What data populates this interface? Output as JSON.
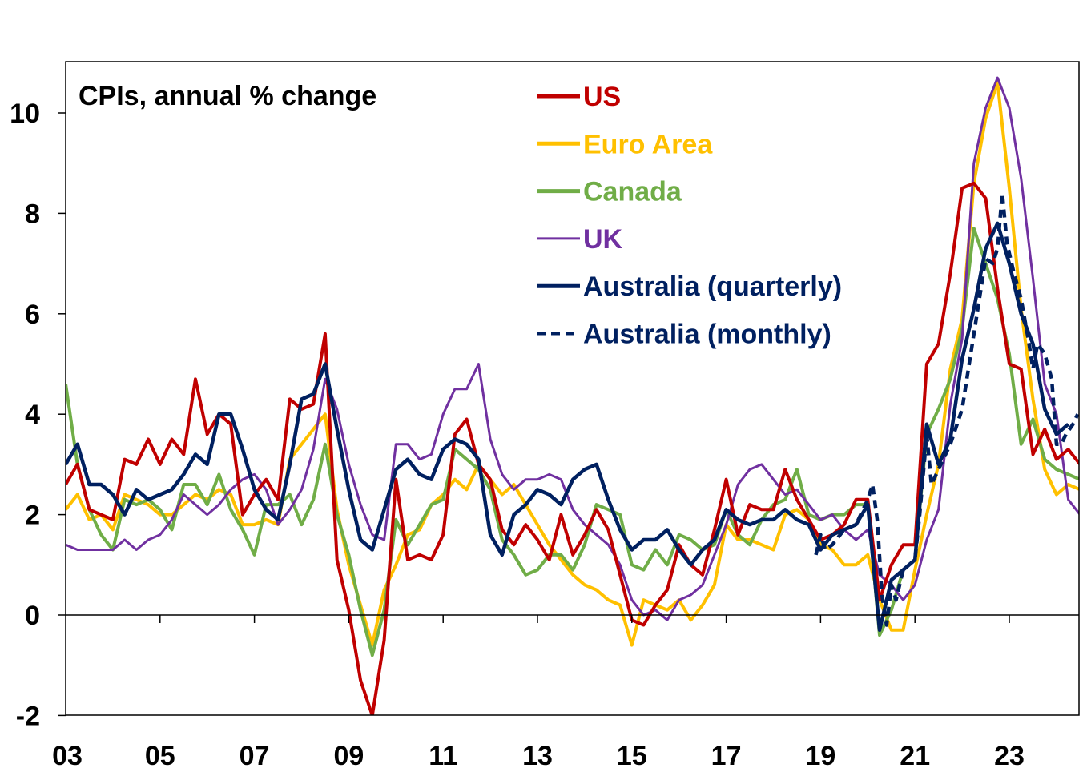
{
  "chart_data": {
    "type": "line",
    "title": "CPIs, annual % change",
    "xlabel": "",
    "ylabel": "",
    "xlim": [
      2003.0,
      2024.75
    ],
    "ylim": [
      -2,
      11
    ],
    "y_ticks": [
      -2,
      0,
      2,
      4,
      6,
      8,
      10
    ],
    "y_tick_labels": [
      "-2",
      "0",
      "2",
      "4",
      "6",
      "8",
      "10"
    ],
    "x_ticks": [
      2003,
      2005,
      2007,
      2009,
      2011,
      2013,
      2015,
      2017,
      2019,
      2021,
      2023
    ],
    "x_tick_labels": [
      "03",
      "05",
      "07",
      "09",
      "11",
      "13",
      "15",
      "17",
      "19",
      "21",
      "23"
    ],
    "grid": false,
    "legend_position": "top-center",
    "series": [
      {
        "name": "US",
        "color": "#C00000",
        "dash": false,
        "x": [
          2003.0,
          2003.25,
          2003.5,
          2003.75,
          2004.0,
          2004.25,
          2004.5,
          2004.75,
          2005.0,
          2005.25,
          2005.5,
          2005.75,
          2006.0,
          2006.25,
          2006.5,
          2006.75,
          2007.0,
          2007.25,
          2007.5,
          2007.75,
          2008.0,
          2008.25,
          2008.5,
          2008.75,
          2009.0,
          2009.25,
          2009.5,
          2009.75,
          2010.0,
          2010.25,
          2010.5,
          2010.75,
          2011.0,
          2011.25,
          2011.5,
          2011.75,
          2012.0,
          2012.25,
          2012.5,
          2012.75,
          2013.0,
          2013.25,
          2013.5,
          2013.75,
          2014.0,
          2014.25,
          2014.5,
          2014.75,
          2015.0,
          2015.25,
          2015.5,
          2015.75,
          2016.0,
          2016.25,
          2016.5,
          2016.75,
          2017.0,
          2017.25,
          2017.5,
          2017.75,
          2018.0,
          2018.25,
          2018.5,
          2018.75,
          2019.0,
          2019.25,
          2019.5,
          2019.75,
          2020.0,
          2020.25,
          2020.5,
          2020.75,
          2021.0,
          2021.25,
          2021.5,
          2021.75,
          2022.0,
          2022.25,
          2022.5,
          2022.75,
          2023.0,
          2023.25,
          2023.5,
          2023.75,
          2024.0,
          2024.25,
          2024.5
        ],
        "y": [
          2.6,
          3.0,
          2.1,
          2.0,
          1.9,
          3.1,
          3.0,
          3.5,
          3.0,
          3.5,
          3.2,
          4.7,
          3.6,
          4.0,
          3.8,
          2.0,
          2.4,
          2.7,
          2.3,
          4.3,
          4.1,
          4.2,
          5.6,
          1.1,
          0.1,
          -1.3,
          -2.0,
          -0.5,
          2.7,
          1.1,
          1.2,
          1.1,
          1.6,
          3.6,
          3.9,
          3.0,
          2.7,
          1.7,
          1.4,
          1.8,
          1.5,
          1.1,
          2.0,
          1.2,
          1.6,
          2.1,
          1.7,
          0.8,
          -0.1,
          -0.2,
          0.2,
          0.5,
          1.4,
          1.0,
          0.8,
          1.7,
          2.7,
          1.6,
          2.2,
          2.1,
          2.1,
          2.9,
          2.3,
          1.9,
          1.5,
          1.6,
          1.8,
          2.3,
          2.3,
          0.3,
          1.0,
          1.4,
          1.4,
          5.0,
          5.4,
          6.8,
          8.5,
          8.6,
          8.3,
          6.5,
          5.0,
          4.9,
          3.2,
          3.7,
          3.1,
          3.3,
          3.0
        ]
      },
      {
        "name": "Euro Area",
        "color": "#FFC000",
        "dash": false,
        "x": [
          2003.0,
          2003.25,
          2003.5,
          2003.75,
          2004.0,
          2004.25,
          2004.5,
          2004.75,
          2005.0,
          2005.25,
          2005.5,
          2005.75,
          2006.0,
          2006.25,
          2006.5,
          2006.75,
          2007.0,
          2007.25,
          2007.5,
          2007.75,
          2008.0,
          2008.25,
          2008.5,
          2008.75,
          2009.0,
          2009.25,
          2009.5,
          2009.75,
          2010.0,
          2010.25,
          2010.5,
          2010.75,
          2011.0,
          2011.25,
          2011.5,
          2011.75,
          2012.0,
          2012.25,
          2012.5,
          2012.75,
          2013.0,
          2013.25,
          2013.5,
          2013.75,
          2014.0,
          2014.25,
          2014.5,
          2014.75,
          2015.0,
          2015.25,
          2015.5,
          2015.75,
          2016.0,
          2016.25,
          2016.5,
          2016.75,
          2017.0,
          2017.25,
          2017.5,
          2017.75,
          2018.0,
          2018.25,
          2018.5,
          2018.75,
          2019.0,
          2019.25,
          2019.5,
          2019.75,
          2020.0,
          2020.25,
          2020.5,
          2020.75,
          2021.0,
          2021.25,
          2021.5,
          2021.75,
          2022.0,
          2022.25,
          2022.5,
          2022.75,
          2023.0,
          2023.25,
          2023.5,
          2023.75,
          2024.0,
          2024.25,
          2024.5
        ],
        "y": [
          2.1,
          2.4,
          1.9,
          2.0,
          1.7,
          2.4,
          2.3,
          2.2,
          2.0,
          2.0,
          2.2,
          2.4,
          2.3,
          2.5,
          2.4,
          1.8,
          1.8,
          1.9,
          1.8,
          3.1,
          3.4,
          3.7,
          4.0,
          2.1,
          1.0,
          0.2,
          -0.6,
          0.5,
          1.0,
          1.6,
          1.7,
          2.2,
          2.4,
          2.7,
          2.5,
          3.0,
          2.7,
          2.4,
          2.6,
          2.2,
          1.8,
          1.4,
          1.1,
          0.8,
          0.6,
          0.5,
          0.3,
          0.2,
          -0.6,
          0.3,
          0.2,
          0.1,
          0.3,
          -0.1,
          0.2,
          0.6,
          1.8,
          1.5,
          1.5,
          1.4,
          1.3,
          2.0,
          2.1,
          1.9,
          1.4,
          1.3,
          1.0,
          1.0,
          1.2,
          0.3,
          -0.3,
          -0.3,
          0.9,
          2.0,
          3.0,
          4.9,
          5.9,
          8.6,
          9.9,
          10.6,
          8.5,
          6.1,
          4.3,
          2.9,
          2.4,
          2.6,
          2.5
        ]
      },
      {
        "name": "Canada",
        "color": "#70AD47",
        "dash": false,
        "x": [
          2003.0,
          2003.25,
          2003.5,
          2003.75,
          2004.0,
          2004.25,
          2004.5,
          2004.75,
          2005.0,
          2005.25,
          2005.5,
          2005.75,
          2006.0,
          2006.25,
          2006.5,
          2006.75,
          2007.0,
          2007.25,
          2007.5,
          2007.75,
          2008.0,
          2008.25,
          2008.5,
          2008.75,
          2009.0,
          2009.25,
          2009.5,
          2009.75,
          2010.0,
          2010.25,
          2010.5,
          2010.75,
          2011.0,
          2011.25,
          2011.5,
          2011.75,
          2012.0,
          2012.25,
          2012.5,
          2012.75,
          2013.0,
          2013.25,
          2013.5,
          2013.75,
          2014.0,
          2014.25,
          2014.5,
          2014.75,
          2015.0,
          2015.25,
          2015.5,
          2015.75,
          2016.0,
          2016.25,
          2016.5,
          2016.75,
          2017.0,
          2017.25,
          2017.5,
          2017.75,
          2018.0,
          2018.25,
          2018.5,
          2018.75,
          2019.0,
          2019.25,
          2019.5,
          2019.75,
          2020.0,
          2020.25,
          2020.5,
          2020.75,
          2021.0,
          2021.25,
          2021.5,
          2021.75,
          2022.0,
          2022.25,
          2022.5,
          2022.75,
          2023.0,
          2023.25,
          2023.5,
          2023.75,
          2024.0,
          2024.25,
          2024.5
        ],
        "y": [
          4.6,
          3.0,
          2.1,
          1.6,
          1.3,
          2.3,
          2.2,
          2.3,
          2.1,
          1.7,
          2.6,
          2.6,
          2.2,
          2.8,
          2.1,
          1.7,
          1.2,
          2.2,
          2.2,
          2.4,
          1.8,
          2.3,
          3.4,
          2.0,
          1.2,
          0.1,
          -0.8,
          0.1,
          1.9,
          1.4,
          1.8,
          2.2,
          2.3,
          3.3,
          3.1,
          2.9,
          2.5,
          1.5,
          1.2,
          0.8,
          0.9,
          1.2,
          1.2,
          0.9,
          1.4,
          2.2,
          2.1,
          2.0,
          1.0,
          0.9,
          1.3,
          1.0,
          1.6,
          1.5,
          1.3,
          1.4,
          2.1,
          1.6,
          1.4,
          1.9,
          2.2,
          2.3,
          2.9,
          2.0,
          1.9,
          2.0,
          2.0,
          2.2,
          2.2,
          -0.4,
          0.1,
          0.9,
          1.1,
          3.6,
          4.1,
          4.7,
          5.7,
          7.7,
          7.0,
          6.3,
          5.2,
          3.4,
          3.9,
          3.1,
          2.9,
          2.8,
          2.7
        ]
      },
      {
        "name": "UK",
        "color": "#7030A0",
        "dash": false,
        "x": [
          2003.0,
          2003.25,
          2003.5,
          2003.75,
          2004.0,
          2004.25,
          2004.5,
          2004.75,
          2005.0,
          2005.25,
          2005.5,
          2005.75,
          2006.0,
          2006.25,
          2006.5,
          2006.75,
          2007.0,
          2007.25,
          2007.5,
          2007.75,
          2008.0,
          2008.25,
          2008.5,
          2008.75,
          2009.0,
          2009.25,
          2009.5,
          2009.75,
          2010.0,
          2010.25,
          2010.5,
          2010.75,
          2011.0,
          2011.25,
          2011.5,
          2011.75,
          2012.0,
          2012.25,
          2012.5,
          2012.75,
          2013.0,
          2013.25,
          2013.5,
          2013.75,
          2014.0,
          2014.25,
          2014.5,
          2014.75,
          2015.0,
          2015.25,
          2015.5,
          2015.75,
          2016.0,
          2016.25,
          2016.5,
          2016.75,
          2017.0,
          2017.25,
          2017.5,
          2017.75,
          2018.0,
          2018.25,
          2018.5,
          2018.75,
          2019.0,
          2019.25,
          2019.5,
          2019.75,
          2020.0,
          2020.25,
          2020.5,
          2020.75,
          2021.0,
          2021.25,
          2021.5,
          2021.75,
          2022.0,
          2022.25,
          2022.5,
          2022.75,
          2023.0,
          2023.25,
          2023.5,
          2023.75,
          2024.0,
          2024.25,
          2024.5
        ],
        "y": [
          1.4,
          1.3,
          1.3,
          1.3,
          1.3,
          1.5,
          1.3,
          1.5,
          1.6,
          1.9,
          2.4,
          2.2,
          2.0,
          2.2,
          2.5,
          2.7,
          2.8,
          2.5,
          1.8,
          2.1,
          2.5,
          3.3,
          4.7,
          4.1,
          3.0,
          2.2,
          1.6,
          1.5,
          3.4,
          3.4,
          3.1,
          3.2,
          4.0,
          4.5,
          4.5,
          5.0,
          3.5,
          2.8,
          2.5,
          2.7,
          2.7,
          2.8,
          2.7,
          2.1,
          1.8,
          1.6,
          1.4,
          1.0,
          0.3,
          0.0,
          0.1,
          -0.1,
          0.3,
          0.4,
          0.6,
          1.2,
          1.8,
          2.6,
          2.9,
          3.0,
          2.7,
          2.4,
          2.5,
          2.2,
          1.9,
          2.0,
          1.7,
          1.5,
          1.7,
          0.8,
          0.6,
          0.3,
          0.6,
          1.5,
          2.1,
          4.2,
          5.5,
          9.0,
          10.1,
          10.7,
          10.1,
          8.7,
          6.7,
          4.6,
          4.0,
          2.3,
          2.0
        ]
      },
      {
        "name": "Australia (quarterly)",
        "color": "#002060",
        "dash": false,
        "x": [
          2003.0,
          2003.25,
          2003.5,
          2003.75,
          2004.0,
          2004.25,
          2004.5,
          2004.75,
          2005.0,
          2005.25,
          2005.5,
          2005.75,
          2006.0,
          2006.25,
          2006.5,
          2006.75,
          2007.0,
          2007.25,
          2007.5,
          2007.75,
          2008.0,
          2008.25,
          2008.5,
          2008.75,
          2009.0,
          2009.25,
          2009.5,
          2009.75,
          2010.0,
          2010.25,
          2010.5,
          2010.75,
          2011.0,
          2011.25,
          2011.5,
          2011.75,
          2012.0,
          2012.25,
          2012.5,
          2012.75,
          2013.0,
          2013.25,
          2013.5,
          2013.75,
          2014.0,
          2014.25,
          2014.5,
          2014.75,
          2015.0,
          2015.25,
          2015.5,
          2015.75,
          2016.0,
          2016.25,
          2016.5,
          2016.75,
          2017.0,
          2017.25,
          2017.5,
          2017.75,
          2018.0,
          2018.25,
          2018.5,
          2018.75,
          2019.0,
          2019.25,
          2019.5,
          2019.75,
          2020.0,
          2020.25,
          2020.5,
          2020.75,
          2021.0,
          2021.25,
          2021.5,
          2021.75,
          2022.0,
          2022.25,
          2022.5,
          2022.75,
          2023.0,
          2023.25,
          2023.5,
          2023.75,
          2024.0,
          2024.25
        ],
        "y": [
          3.0,
          3.4,
          2.6,
          2.6,
          2.4,
          2.0,
          2.5,
          2.3,
          2.4,
          2.5,
          2.8,
          3.2,
          3.0,
          4.0,
          4.0,
          3.3,
          2.5,
          2.1,
          1.9,
          3.0,
          4.3,
          4.4,
          5.0,
          3.7,
          2.5,
          1.5,
          1.3,
          2.1,
          2.9,
          3.1,
          2.8,
          2.7,
          3.3,
          3.5,
          3.4,
          3.1,
          1.6,
          1.2,
          2.0,
          2.2,
          2.5,
          2.4,
          2.2,
          2.7,
          2.9,
          3.0,
          2.3,
          1.7,
          1.3,
          1.5,
          1.5,
          1.7,
          1.3,
          1.0,
          1.3,
          1.5,
          2.1,
          1.9,
          1.8,
          1.9,
          1.9,
          2.1,
          1.9,
          1.8,
          1.3,
          1.6,
          1.7,
          1.8,
          2.2,
          -0.3,
          0.7,
          0.9,
          1.1,
          3.8,
          3.0,
          3.5,
          5.1,
          6.1,
          7.3,
          7.8,
          7.0,
          6.0,
          5.4,
          4.1,
          3.6,
          3.8
        ]
      },
      {
        "name": "Australia (monthly)",
        "color": "#002060",
        "dash": true,
        "x": [
          2018.9,
          2019.0,
          2019.1,
          2019.25,
          2019.5,
          2019.75,
          2020.0,
          2020.1,
          2020.2,
          2020.3,
          2020.4,
          2020.5,
          2020.6,
          2020.75,
          2021.0,
          2021.1,
          2021.25,
          2021.35,
          2021.5,
          2021.6,
          2021.75,
          2022.0,
          2022.25,
          2022.5,
          2022.65,
          2022.75,
          2022.85,
          2022.95,
          2023.1,
          2023.25,
          2023.4,
          2023.5,
          2023.6,
          2023.75,
          2023.9,
          2024.0,
          2024.1,
          2024.2,
          2024.35,
          2024.45
        ],
        "y": [
          1.2,
          1.6,
          1.3,
          1.4,
          1.7,
          1.8,
          2.3,
          2.6,
          1.9,
          0.4,
          -0.2,
          0.6,
          0.3,
          0.9,
          1.1,
          2.0,
          3.6,
          2.6,
          2.9,
          3.1,
          3.4,
          4.1,
          5.6,
          7.1,
          7.0,
          7.3,
          8.4,
          7.4,
          6.8,
          6.3,
          5.5,
          4.9,
          5.4,
          5.2,
          4.7,
          3.4,
          3.4,
          3.6,
          3.8,
          4.0
        ]
      }
    ]
  }
}
